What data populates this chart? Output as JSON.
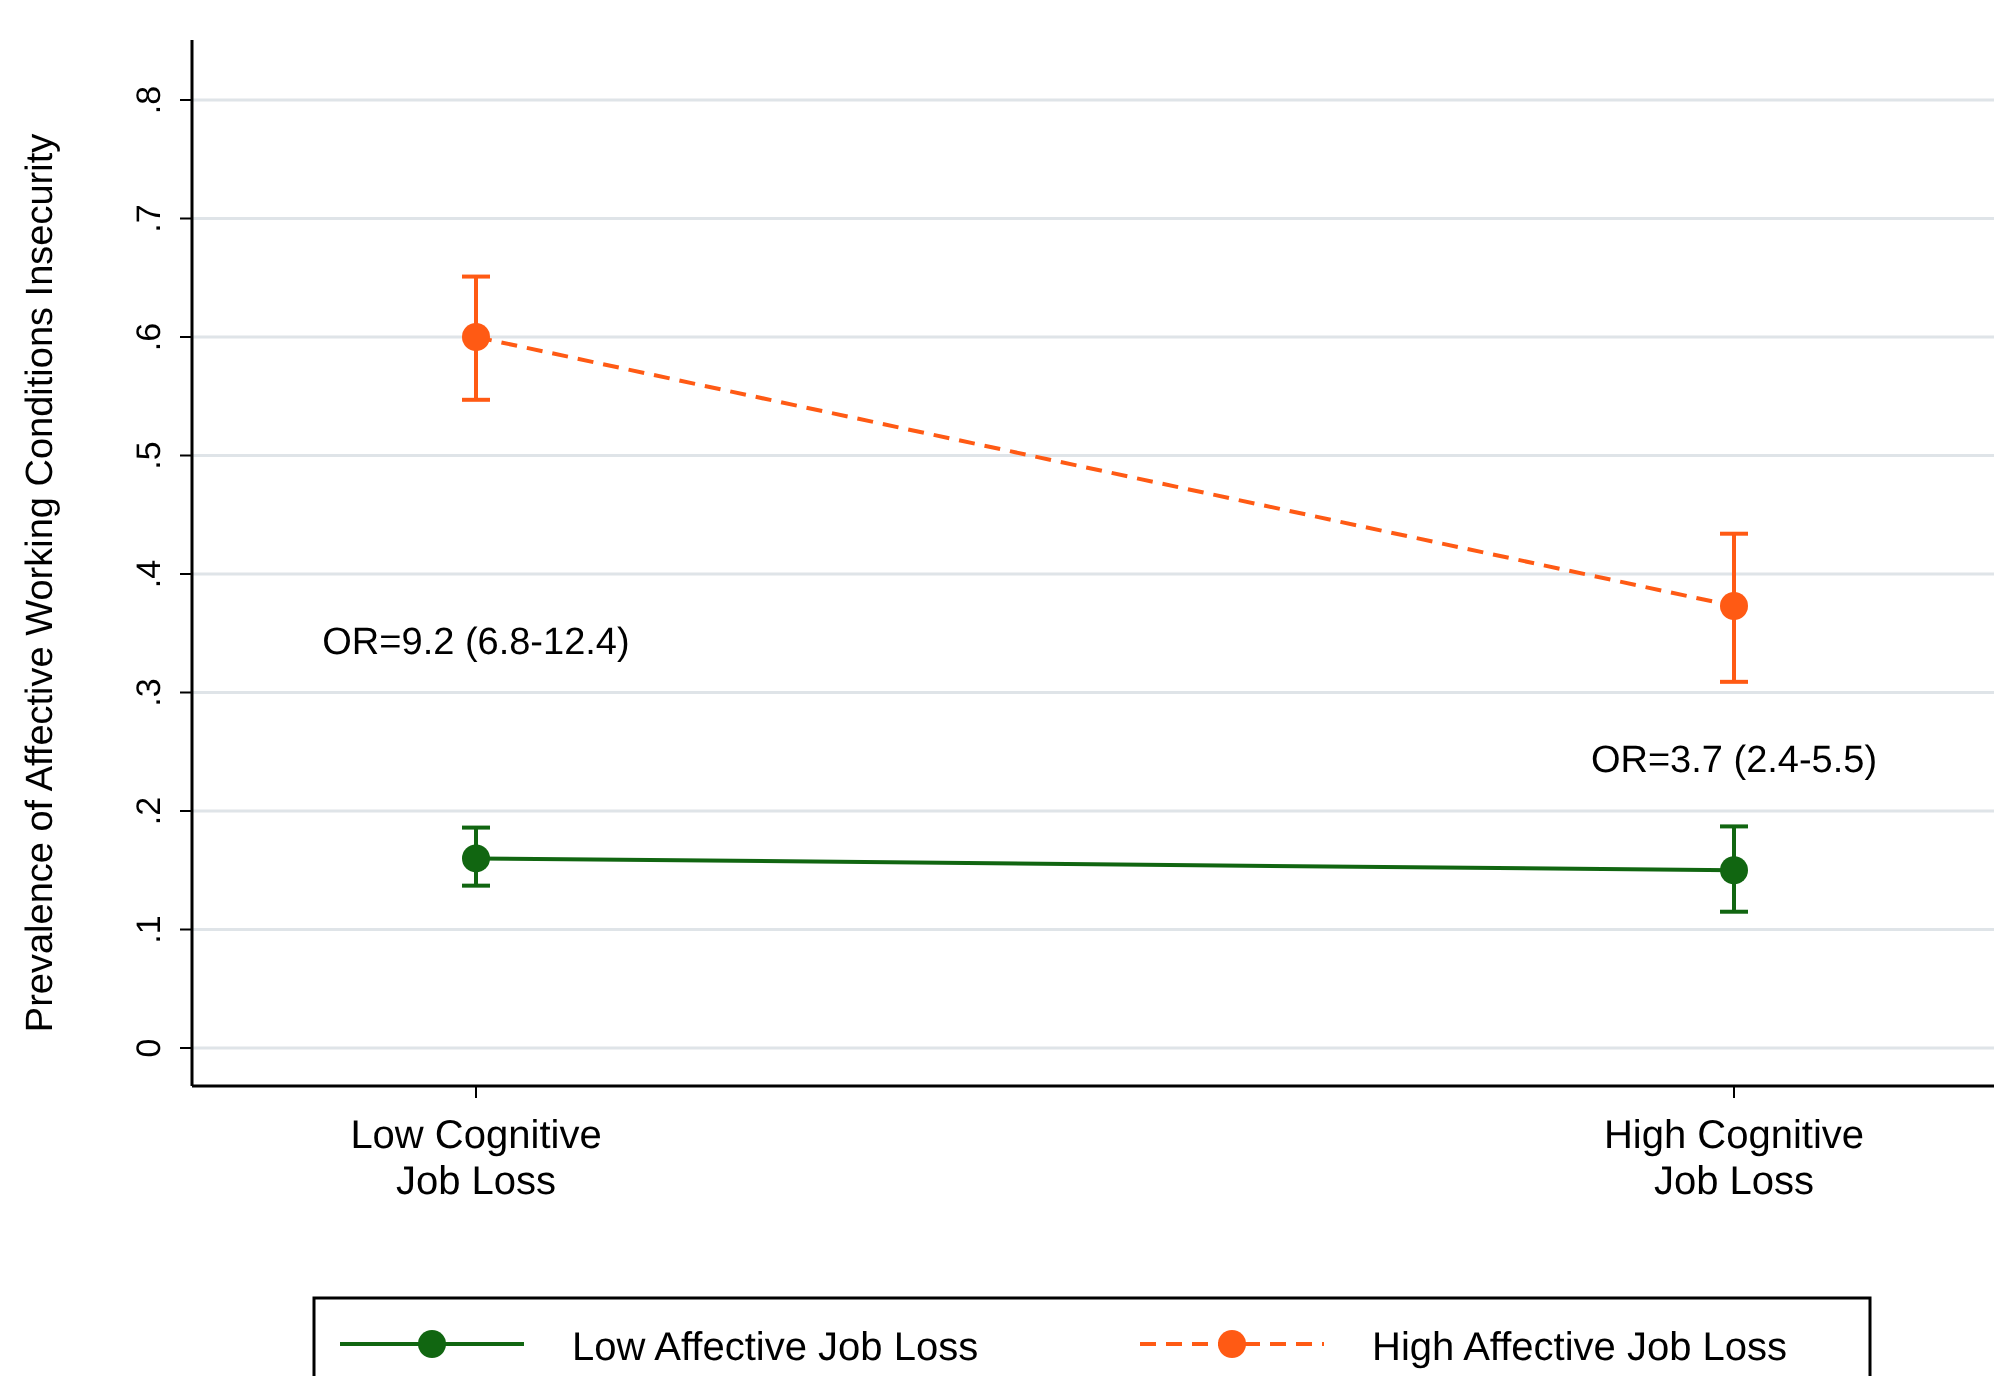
{
  "chart_data": {
    "type": "line",
    "ylabel": "Prevalence of Affective Working Conditions Insecurity",
    "categories": [
      "Low Cognitive\nJob Loss",
      "High Cognitive\nJob Loss"
    ],
    "series": [
      {
        "name": "Low Affective Job Loss",
        "color": "#116611",
        "values": [
          0.16,
          0.15
        ],
        "errors": [
          [
            0.137,
            0.186
          ],
          [
            0.115,
            0.187
          ]
        ],
        "line_style": "solid"
      },
      {
        "name": "High Affective Job Loss",
        "color": "#ff5a14",
        "values": [
          0.6,
          0.373
        ],
        "errors": [
          [
            0.547,
            0.651
          ],
          [
            0.309,
            0.434
          ]
        ],
        "line_style": "dashed"
      }
    ],
    "ylim": [
      0,
      0.8
    ],
    "yticks": [
      {
        "value": 0,
        "label": "0"
      },
      {
        "value": 0.1,
        "label": ".1"
      },
      {
        "value": 0.2,
        "label": ".2"
      },
      {
        "value": 0.3,
        "label": ".3"
      },
      {
        "value": 0.4,
        "label": ".4"
      },
      {
        "value": 0.5,
        "label": ".5"
      },
      {
        "value": 0.6,
        "label": ".6"
      },
      {
        "value": 0.7,
        "label": ".7"
      },
      {
        "value": 0.8,
        "label": ".8"
      }
    ],
    "grid": "y",
    "marker": "circle",
    "legend": "bottom",
    "annotations": [
      "OR=9.2 (6.8-12.4)",
      "OR=3.7 (2.4-5.5)"
    ]
  }
}
